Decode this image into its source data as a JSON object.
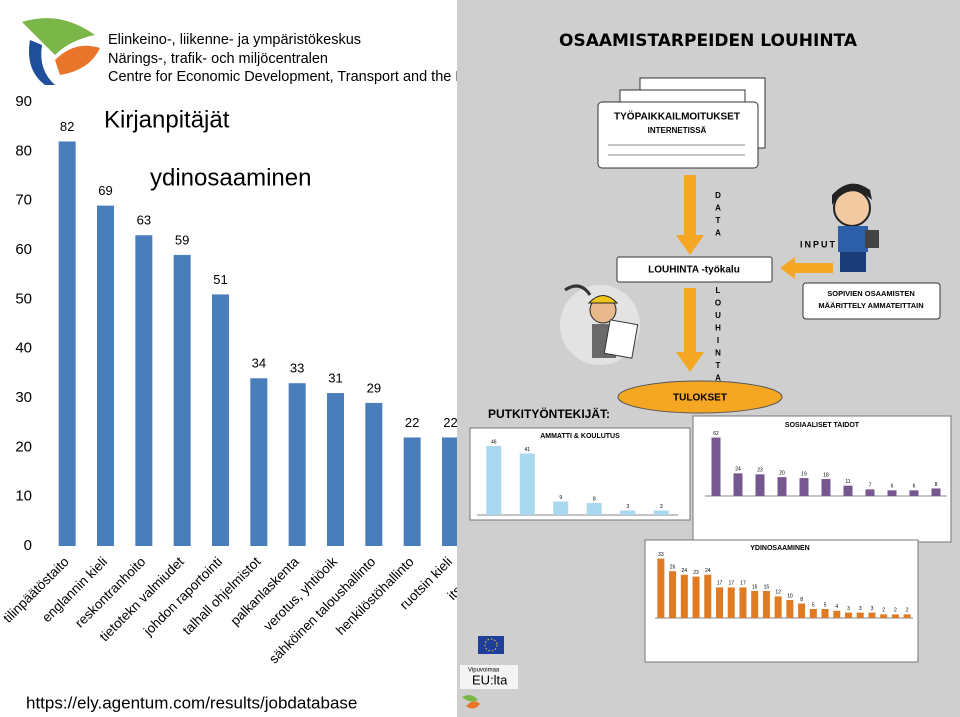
{
  "header": {
    "lines": [
      "Elinkeino-, liikenne- ja ympäristökeskus",
      "Närings-, trafik- och miljöcentralen",
      "Centre for Economic Development, Transport and the En"
    ]
  },
  "chart_data": [
    {
      "type": "bar",
      "annotations": [
        "Kirjanpitäjät",
        "ydinosaaminen"
      ],
      "categories": [
        "tilinpäätöstaito",
        "englannin kieli",
        "reskontranhoito",
        "tietotekn valmiudet",
        "johdon raportointi",
        "talhall ohjelmistot",
        "palkanlaskenta",
        "verotus, yhtiöoik",
        "sähköinen taloushallinto",
        "henkilöstöhallinto",
        "ruotsin kieli",
        "itseohjau"
      ],
      "values": [
        82,
        69,
        63,
        59,
        51,
        34,
        33,
        31,
        29,
        22,
        22,
        null
      ],
      "color": "#4a7ebb",
      "ylim": [
        0,
        90
      ],
      "yticks": [
        0,
        10,
        20,
        30,
        40,
        50,
        60,
        70,
        80,
        90
      ]
    },
    {
      "type": "bar",
      "title": "AMMATTI & KOULUTUS",
      "values": [
        46,
        41,
        9,
        8,
        3,
        3
      ],
      "color": "#a9d8ef",
      "ylim": [
        0,
        50
      ]
    },
    {
      "type": "bar",
      "title": "SOSIAALISET TAIDOT",
      "values": [
        62,
        24,
        23,
        20,
        19,
        18,
        11,
        7,
        6,
        6,
        8
      ],
      "color": "#76578f",
      "ylim": [
        0,
        70
      ]
    },
    {
      "type": "bar",
      "title": "YDINOSAAMINEN",
      "values": [
        33,
        26,
        24,
        23,
        24,
        17,
        17,
        17,
        15,
        15,
        12,
        10,
        8,
        5,
        5,
        4,
        3,
        3,
        3,
        2,
        2,
        2
      ],
      "color": "#e07b24",
      "ylim": [
        0,
        35
      ]
    }
  ],
  "diagram": {
    "title": "OSAAMISTARPEIDEN LOUHINTA",
    "source_box": [
      "TYÖPAIKKAILMOITUKSET",
      "INTERNETISSÄ"
    ],
    "data_label": "DATA",
    "input_label": "INPUT",
    "tool": "LOUHINTA -työkalu",
    "mining_label": "LOUHINTA",
    "definition": [
      "SOPIVIEN OSAAMISTEN",
      "MÄÄRITTELY AMMATEITTAIN"
    ],
    "results": "TULOKSET",
    "occupation": "PUTKITYÖNTEKIJÄT:"
  },
  "logos": [
    "Vipuvoimaa",
    "EU:lta"
  ],
  "footer": {
    "url": "https://ely.agentum.com/results/jobdatabase"
  }
}
